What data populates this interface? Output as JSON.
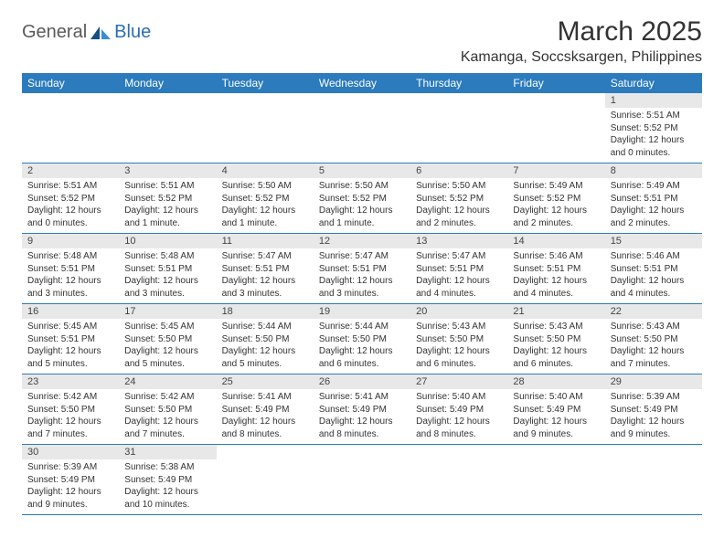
{
  "logo": {
    "text1": "General",
    "text2": "Blue"
  },
  "title": "March 2025",
  "location": "Kamanga, Soccsksargen, Philippines",
  "colors": {
    "header_bg": "#2b7bbd",
    "header_text": "#ffffff",
    "daynum_bg": "#e8e8e8",
    "border": "#2b7bbd",
    "logo_gray": "#5a5a5a",
    "logo_blue": "#2b6fb0",
    "text": "#333333"
  },
  "weekdays": [
    "Sunday",
    "Monday",
    "Tuesday",
    "Wednesday",
    "Thursday",
    "Friday",
    "Saturday"
  ],
  "weeks": [
    [
      null,
      null,
      null,
      null,
      null,
      null,
      {
        "d": "1",
        "sr": "5:51 AM",
        "ss": "5:52 PM",
        "dl": "12 hours and 0 minutes."
      }
    ],
    [
      {
        "d": "2",
        "sr": "5:51 AM",
        "ss": "5:52 PM",
        "dl": "12 hours and 0 minutes."
      },
      {
        "d": "3",
        "sr": "5:51 AM",
        "ss": "5:52 PM",
        "dl": "12 hours and 1 minute."
      },
      {
        "d": "4",
        "sr": "5:50 AM",
        "ss": "5:52 PM",
        "dl": "12 hours and 1 minute."
      },
      {
        "d": "5",
        "sr": "5:50 AM",
        "ss": "5:52 PM",
        "dl": "12 hours and 1 minute."
      },
      {
        "d": "6",
        "sr": "5:50 AM",
        "ss": "5:52 PM",
        "dl": "12 hours and 2 minutes."
      },
      {
        "d": "7",
        "sr": "5:49 AM",
        "ss": "5:52 PM",
        "dl": "12 hours and 2 minutes."
      },
      {
        "d": "8",
        "sr": "5:49 AM",
        "ss": "5:51 PM",
        "dl": "12 hours and 2 minutes."
      }
    ],
    [
      {
        "d": "9",
        "sr": "5:48 AM",
        "ss": "5:51 PM",
        "dl": "12 hours and 3 minutes."
      },
      {
        "d": "10",
        "sr": "5:48 AM",
        "ss": "5:51 PM",
        "dl": "12 hours and 3 minutes."
      },
      {
        "d": "11",
        "sr": "5:47 AM",
        "ss": "5:51 PM",
        "dl": "12 hours and 3 minutes."
      },
      {
        "d": "12",
        "sr": "5:47 AM",
        "ss": "5:51 PM",
        "dl": "12 hours and 3 minutes."
      },
      {
        "d": "13",
        "sr": "5:47 AM",
        "ss": "5:51 PM",
        "dl": "12 hours and 4 minutes."
      },
      {
        "d": "14",
        "sr": "5:46 AM",
        "ss": "5:51 PM",
        "dl": "12 hours and 4 minutes."
      },
      {
        "d": "15",
        "sr": "5:46 AM",
        "ss": "5:51 PM",
        "dl": "12 hours and 4 minutes."
      }
    ],
    [
      {
        "d": "16",
        "sr": "5:45 AM",
        "ss": "5:51 PM",
        "dl": "12 hours and 5 minutes."
      },
      {
        "d": "17",
        "sr": "5:45 AM",
        "ss": "5:50 PM",
        "dl": "12 hours and 5 minutes."
      },
      {
        "d": "18",
        "sr": "5:44 AM",
        "ss": "5:50 PM",
        "dl": "12 hours and 5 minutes."
      },
      {
        "d": "19",
        "sr": "5:44 AM",
        "ss": "5:50 PM",
        "dl": "12 hours and 6 minutes."
      },
      {
        "d": "20",
        "sr": "5:43 AM",
        "ss": "5:50 PM",
        "dl": "12 hours and 6 minutes."
      },
      {
        "d": "21",
        "sr": "5:43 AM",
        "ss": "5:50 PM",
        "dl": "12 hours and 6 minutes."
      },
      {
        "d": "22",
        "sr": "5:43 AM",
        "ss": "5:50 PM",
        "dl": "12 hours and 7 minutes."
      }
    ],
    [
      {
        "d": "23",
        "sr": "5:42 AM",
        "ss": "5:50 PM",
        "dl": "12 hours and 7 minutes."
      },
      {
        "d": "24",
        "sr": "5:42 AM",
        "ss": "5:50 PM",
        "dl": "12 hours and 7 minutes."
      },
      {
        "d": "25",
        "sr": "5:41 AM",
        "ss": "5:49 PM",
        "dl": "12 hours and 8 minutes."
      },
      {
        "d": "26",
        "sr": "5:41 AM",
        "ss": "5:49 PM",
        "dl": "12 hours and 8 minutes."
      },
      {
        "d": "27",
        "sr": "5:40 AM",
        "ss": "5:49 PM",
        "dl": "12 hours and 8 minutes."
      },
      {
        "d": "28",
        "sr": "5:40 AM",
        "ss": "5:49 PM",
        "dl": "12 hours and 9 minutes."
      },
      {
        "d": "29",
        "sr": "5:39 AM",
        "ss": "5:49 PM",
        "dl": "12 hours and 9 minutes."
      }
    ],
    [
      {
        "d": "30",
        "sr": "5:39 AM",
        "ss": "5:49 PM",
        "dl": "12 hours and 9 minutes."
      },
      {
        "d": "31",
        "sr": "5:38 AM",
        "ss": "5:49 PM",
        "dl": "12 hours and 10 minutes."
      },
      null,
      null,
      null,
      null,
      null
    ]
  ],
  "labels": {
    "sunrise": "Sunrise:",
    "sunset": "Sunset:",
    "daylight": "Daylight:"
  }
}
